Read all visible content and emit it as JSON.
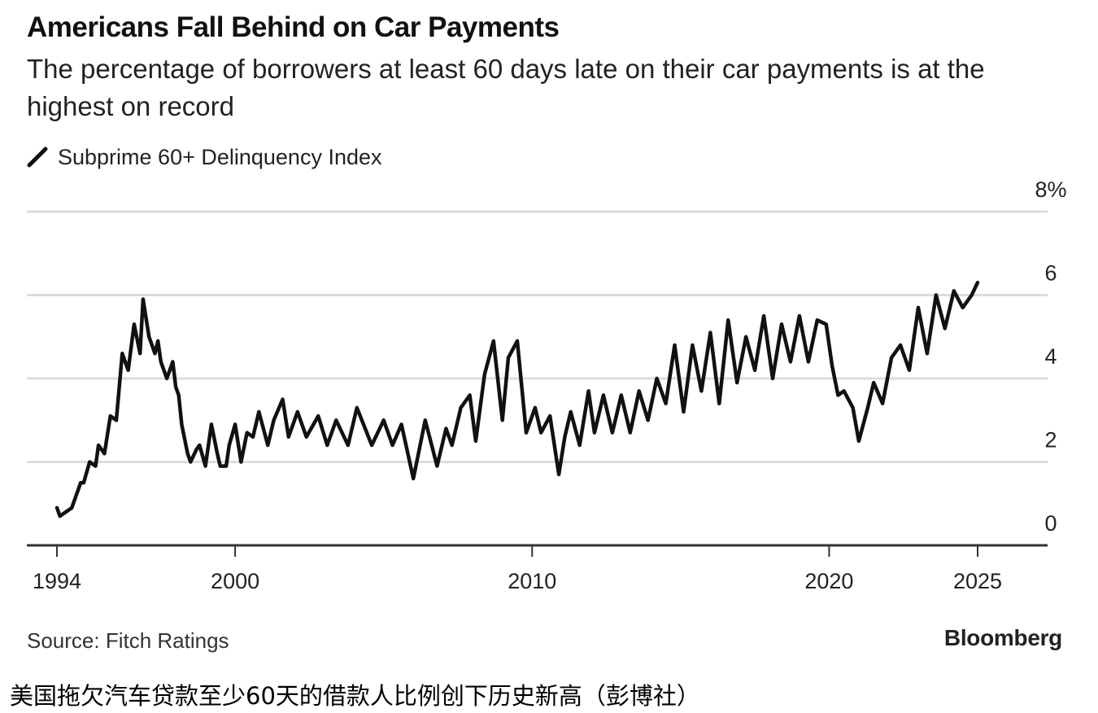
{
  "header": {
    "title": "Americans Fall Behind on Car Payments",
    "subtitle": "The percentage of borrowers at least 60 days late on their car payments is at the highest on record"
  },
  "footer": {
    "source": "Source: Fitch Ratings",
    "brand": "Bloomberg",
    "caption": "美国拖欠汽车贷款至少60天的借款人比例创下历史新高（彭博社）"
  },
  "colors": {
    "line": "#111111",
    "grid": "#dcdcdc",
    "axis": "#333333"
  },
  "chart_data": {
    "type": "line",
    "title": "Americans Fall Behind on Car Payments",
    "subtitle": "The percentage of borrowers at least 60 days late on their car payments is at the highest on record",
    "legend_position": "top-left",
    "grid": true,
    "y_axis_side": "right",
    "ylim": [
      0,
      8
    ],
    "yticks": [
      0,
      2,
      4,
      6,
      8
    ],
    "ytick_labels": [
      "0",
      "2",
      "4",
      "6",
      "8%"
    ],
    "xlim": [
      1994,
      2027.2
    ],
    "xticks": [
      1994,
      2000,
      2010,
      2020,
      2025
    ],
    "xtick_labels": [
      "1994",
      "2000",
      "2010",
      "2020",
      "2025"
    ],
    "series": [
      {
        "name": "Subprime 60+ Delinquency Index",
        "x": [
          1994.0,
          1994.1,
          1994.3,
          1994.5,
          1994.6,
          1994.8,
          1994.9,
          1995.1,
          1995.3,
          1995.4,
          1995.6,
          1995.8,
          1996.0,
          1996.2,
          1996.4,
          1996.6,
          1996.8,
          1996.9,
          1997.1,
          1997.3,
          1997.4,
          1997.5,
          1997.6,
          1997.7,
          1997.8,
          1997.9,
          1998.0,
          1998.1,
          1998.2,
          1998.4,
          1998.5,
          1998.7,
          1998.8,
          1999.0,
          1999.2,
          1999.4,
          1999.5,
          1999.7,
          1999.8,
          2000.0,
          2000.2,
          2000.4,
          2000.6,
          2000.8,
          2001.1,
          2001.3,
          2001.6,
          2001.8,
          2002.1,
          2002.4,
          2002.8,
          2003.1,
          2003.4,
          2003.8,
          2004.1,
          2004.6,
          2005.0,
          2005.3,
          2005.6,
          2006.0,
          2006.4,
          2006.8,
          2007.1,
          2007.3,
          2007.6,
          2007.9,
          2008.1,
          2008.4,
          2008.7,
          2009.0,
          2009.2,
          2009.5,
          2009.8,
          2010.1,
          2010.3,
          2010.6,
          2010.9,
          2011.1,
          2011.3,
          2011.6,
          2011.9,
          2012.1,
          2012.4,
          2012.7,
          2013.0,
          2013.3,
          2013.6,
          2013.9,
          2014.2,
          2014.5,
          2014.8,
          2015.1,
          2015.4,
          2015.7,
          2016.0,
          2016.3,
          2016.6,
          2016.9,
          2017.2,
          2017.5,
          2017.8,
          2018.1,
          2018.4,
          2018.7,
          2019.0,
          2019.3,
          2019.6,
          2019.9,
          2020.1,
          2020.3,
          2020.5,
          2020.8,
          2021.0,
          2021.3,
          2021.5,
          2021.8,
          2022.1,
          2022.4,
          2022.7,
          2023.0,
          2023.3,
          2023.6,
          2023.9,
          2024.2,
          2024.5,
          2024.8,
          2025.0
        ],
        "y": [
          0.9,
          0.7,
          0.8,
          0.9,
          1.1,
          1.5,
          1.5,
          2.0,
          1.9,
          2.4,
          2.2,
          3.1,
          3.0,
          4.6,
          4.2,
          5.3,
          4.6,
          5.9,
          5.0,
          4.6,
          4.9,
          4.4,
          4.2,
          4.0,
          4.2,
          4.4,
          3.8,
          3.6,
          2.9,
          2.2,
          2.0,
          2.3,
          2.4,
          1.9,
          2.9,
          2.2,
          1.9,
          1.9,
          2.4,
          2.9,
          2.0,
          2.7,
          2.6,
          3.2,
          2.4,
          3.0,
          3.5,
          2.6,
          3.2,
          2.6,
          3.1,
          2.4,
          3.0,
          2.4,
          3.3,
          2.4,
          3.0,
          2.4,
          2.9,
          1.6,
          3.0,
          1.9,
          2.8,
          2.4,
          3.3,
          3.6,
          2.5,
          4.1,
          4.9,
          3.0,
          4.5,
          4.9,
          2.7,
          3.3,
          2.7,
          3.1,
          1.7,
          2.6,
          3.2,
          2.4,
          3.7,
          2.7,
          3.6,
          2.7,
          3.6,
          2.7,
          3.7,
          3.0,
          4.0,
          3.4,
          4.8,
          3.2,
          4.8,
          3.7,
          5.1,
          3.4,
          5.4,
          3.9,
          5.0,
          4.2,
          5.5,
          4.0,
          5.3,
          4.4,
          5.5,
          4.4,
          5.4,
          5.3,
          4.3,
          3.6,
          3.7,
          3.3,
          2.5,
          3.3,
          3.9,
          3.4,
          4.5,
          4.8,
          4.2,
          5.7,
          4.6,
          6.0,
          5.2,
          6.1,
          5.7,
          6.0,
          6.3
        ]
      }
    ]
  }
}
